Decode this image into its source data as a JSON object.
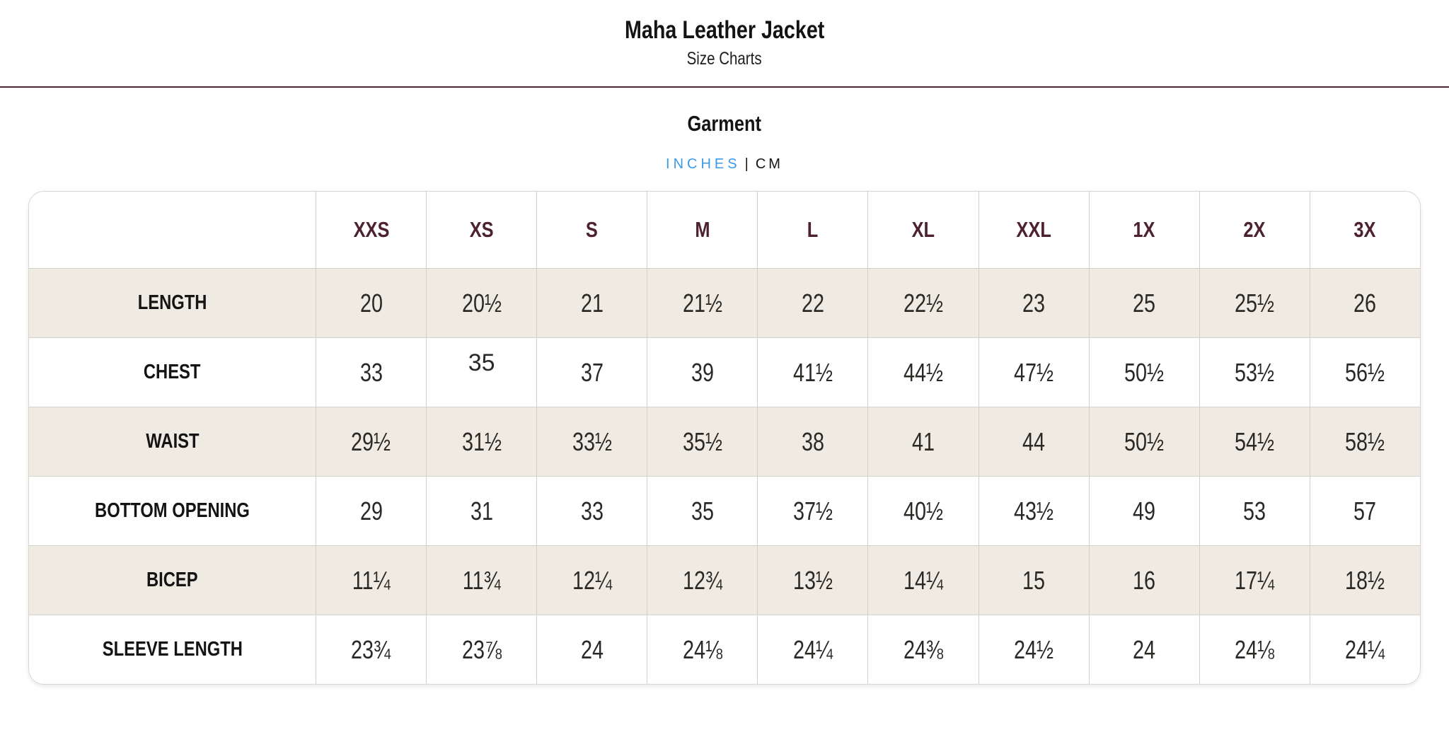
{
  "page": {
    "title": "Maha Leather Jacket",
    "subtitle": "Size Charts",
    "section_title": "Garment"
  },
  "units": {
    "inches_label": "INCHES",
    "separator": "|",
    "cm_label": "CM",
    "active": "inches"
  },
  "colors": {
    "accent_blue": "#3b9be8",
    "maroon_header_text": "#4e2130",
    "divider_rule": "#512636",
    "stripe_beige": "#f0ebe2",
    "grid_line": "#d2cfc8",
    "text_black": "#141414"
  },
  "table": {
    "sizes": [
      "XXS",
      "XS",
      "S",
      "M",
      "L",
      "XL",
      "XXL",
      "1X",
      "2X",
      "3X"
    ],
    "rows": [
      {
        "label": "LENGTH",
        "values": [
          "20",
          "20½",
          "21",
          "21½",
          "22",
          "22½",
          "23",
          "25",
          "25½",
          "26"
        ]
      },
      {
        "label": "CHEST",
        "values": [
          "33",
          "35",
          "37",
          "39",
          "41½",
          "44½",
          "47½",
          "50½",
          "53½",
          "56½"
        ],
        "variant_cols": [
          1
        ]
      },
      {
        "label": "WAIST",
        "values": [
          "29½",
          "31½",
          "33½",
          "35½",
          "38",
          "41",
          "44",
          "50½",
          "54½",
          "58½"
        ]
      },
      {
        "label": "BOTTOM OPENING",
        "values": [
          "29",
          "31",
          "33",
          "35",
          "37½",
          "40½",
          "43½",
          "49",
          "53",
          "57"
        ]
      },
      {
        "label": "BICEP",
        "values": [
          "11¼",
          "11¾",
          "12¼",
          "12¾",
          "13½",
          "14¼",
          "15",
          "16",
          "17¼",
          "18½"
        ]
      },
      {
        "label": "SLEEVE LENGTH",
        "values": [
          "23¾",
          "23⅞",
          "24",
          "24⅛",
          "24¼",
          "24⅜",
          "24½",
          "24",
          "24⅛",
          "24¼"
        ]
      }
    ]
  }
}
